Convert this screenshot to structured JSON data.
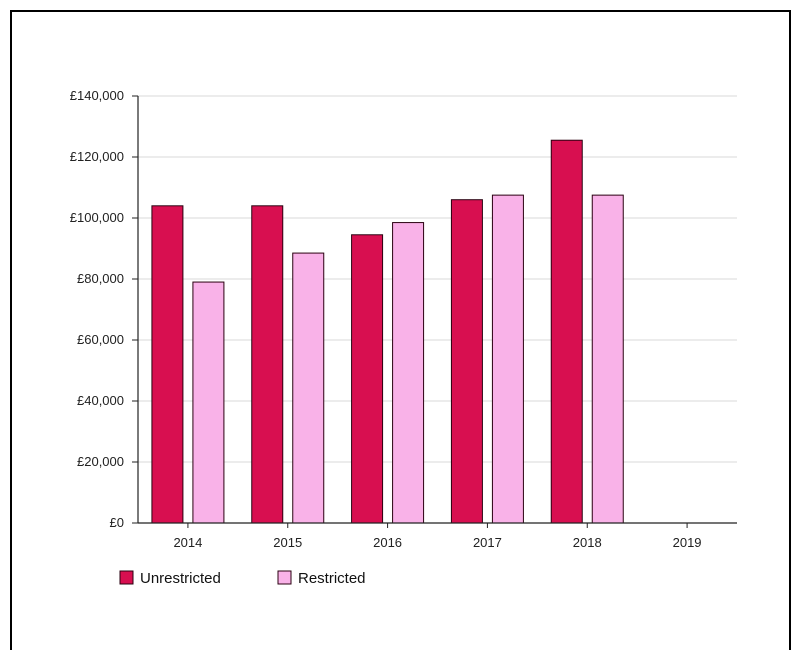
{
  "chart_data": {
    "type": "bar",
    "title": "",
    "xlabel": "",
    "ylabel": "",
    "categories": [
      "2014",
      "2015",
      "2016",
      "2017",
      "2018",
      "2019"
    ],
    "series": [
      {
        "name": "Unrestricted",
        "color": "#d80f50",
        "values": [
          104000,
          104000,
          94500,
          106000,
          125500,
          null
        ]
      },
      {
        "name": "Restricted",
        "color": "#f9b2e8",
        "values": [
          79000,
          88500,
          98500,
          107500,
          107500,
          null
        ]
      }
    ],
    "ylim": [
      0,
      140000
    ],
    "yticks": [
      {
        "value": 0,
        "label": "£0"
      },
      {
        "value": 20000,
        "label": "£20,000"
      },
      {
        "value": 40000,
        "label": "£40,000"
      },
      {
        "value": 60000,
        "label": "£60,000"
      },
      {
        "value": 80000,
        "label": "£80,000"
      },
      {
        "value": 100000,
        "label": "£100,000"
      },
      {
        "value": 120000,
        "label": "£120,000"
      },
      {
        "value": 140000,
        "label": "£140,000"
      }
    ],
    "grid": true,
    "legend_position": "bottom-left"
  }
}
